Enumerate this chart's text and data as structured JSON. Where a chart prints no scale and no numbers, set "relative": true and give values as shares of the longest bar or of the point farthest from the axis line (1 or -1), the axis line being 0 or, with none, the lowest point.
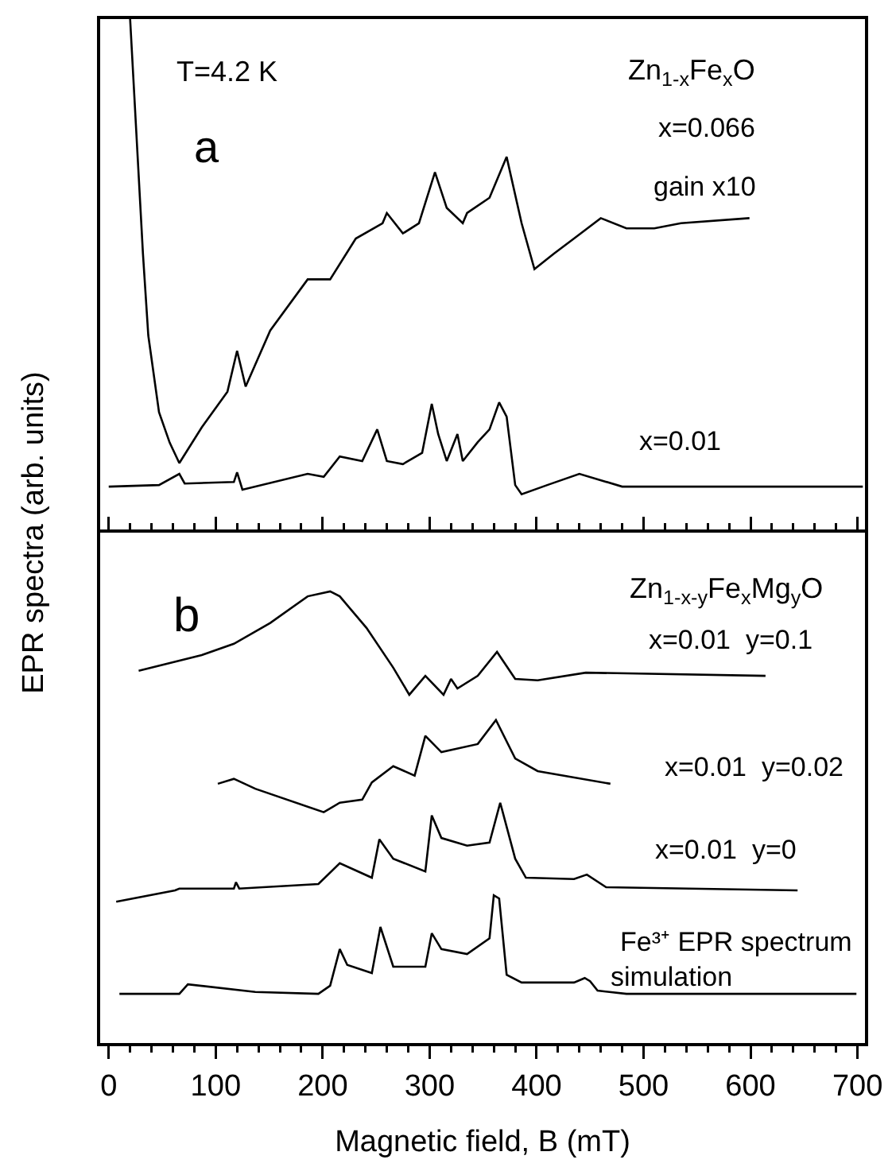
{
  "chart_data": [
    {
      "type": "line",
      "relative": true,
      "ylabel": "EPR spectra (arb. units)",
      "xlim": [
        -8,
        707
      ],
      "xticks": [
        0,
        100,
        200,
        300,
        400,
        500,
        600,
        700
      ],
      "tick_labels": false,
      "annotations": [
        "T=4.2 K",
        "Zn$_{1-x}$Fe$_{x}$O",
        "a",
        "x=0.066",
        "gain x10",
        "x=0.01"
      ],
      "series": [
        {
          "color": "#000000",
          "x": [
            20,
            32,
            37,
            47,
            57,
            66,
            87,
            111,
            120,
            128,
            151,
            186,
            207,
            231,
            256,
            260,
            275,
            290,
            305,
            316,
            331,
            335,
            356,
            372,
            386,
            398,
            416,
            435,
            460,
            484,
            510,
            535,
            599
          ],
          "values": [
            1.0,
            0.54,
            0.38,
            0.23,
            0.17,
            0.13,
            0.2,
            0.27,
            0.35,
            0.28,
            0.39,
            0.49,
            0.49,
            0.57,
            0.6,
            0.62,
            0.58,
            0.6,
            0.7,
            0.63,
            0.6,
            0.62,
            0.65,
            0.73,
            0.6,
            0.51,
            0.54,
            0.57,
            0.61,
            0.59,
            0.59,
            0.6,
            0.61
          ]
        },
        {
          "color": "#000000",
          "x": [
            0,
            47,
            66,
            71,
            117,
            120,
            125,
            186,
            201,
            216,
            237,
            251,
            260,
            275,
            293,
            302,
            308,
            316,
            326,
            331,
            345,
            356,
            365,
            372,
            380,
            386,
            410,
            440,
            480,
            705
          ],
          "values": [
            0.084,
            0.087,
            0.109,
            0.09,
            0.093,
            0.112,
            0.078,
            0.109,
            0.103,
            0.143,
            0.134,
            0.196,
            0.134,
            0.128,
            0.15,
            0.246,
            0.187,
            0.134,
            0.187,
            0.134,
            0.171,
            0.196,
            0.249,
            0.221,
            0.087,
            0.069,
            0.087,
            0.109,
            0.084,
            0.084
          ]
        }
      ]
    },
    {
      "type": "line",
      "relative": true,
      "xlabel": "Magnetic field, B (mT)",
      "xlim": [
        -8,
        707
      ],
      "xticks": [
        0,
        100,
        200,
        300,
        400,
        500,
        600,
        700
      ],
      "tick_labels": "x",
      "annotations": [
        "b",
        "Zn$_{1-x-y}$Fe$_{x}$Mg$_{y}$O",
        "x=0.01  y=0.1",
        "x=0.01  y=0.02",
        "x=0.01  y=0",
        "Fe³⁺ EPR spectrum",
        "simulation"
      ],
      "series": [
        {
          "color": "#000000",
          "x": [
            28,
            87,
            117,
            151,
            186,
            207,
            216,
            241,
            266,
            281,
            296,
            313,
            320,
            326,
            345,
            363,
            380,
            401,
            446,
            614
          ],
          "values": [
            0.824,
            0.859,
            0.884,
            0.93,
            0.989,
            1.0,
            0.989,
            0.919,
            0.831,
            0.771,
            0.813,
            0.771,
            0.806,
            0.785,
            0.813,
            0.866,
            0.806,
            0.803,
            0.82,
            0.813
          ]
        },
        {
          "color": "#000000",
          "x": [
            102,
            117,
            137,
            201,
            216,
            237,
            246,
            266,
            286,
            296,
            311,
            345,
            362,
            380,
            401,
            469
          ],
          "values": [
            0.574,
            0.585,
            0.563,
            0.511,
            0.532,
            0.539,
            0.577,
            0.613,
            0.592,
            0.68,
            0.644,
            0.662,
            0.715,
            0.63,
            0.602,
            0.574
          ]
        },
        {
          "color": "#000000",
          "x": [
            7,
            62,
            66,
            117,
            119,
            122,
            196,
            216,
            246,
            253,
            266,
            296,
            302,
            311,
            335,
            356,
            366,
            380,
            390,
            435,
            447,
            465,
            644
          ],
          "values": [
            0.313,
            0.338,
            0.342,
            0.342,
            0.356,
            0.342,
            0.352,
            0.398,
            0.366,
            0.451,
            0.408,
            0.38,
            0.504,
            0.454,
            0.437,
            0.444,
            0.532,
            0.408,
            0.366,
            0.363,
            0.373,
            0.345,
            0.338
          ]
        },
        {
          "color": "#000000",
          "x": [
            10,
            66,
            74,
            137,
            196,
            207,
            216,
            223,
            246,
            254,
            266,
            296,
            302,
            311,
            335,
            356,
            360,
            365,
            372,
            386,
            435,
            445,
            450,
            457,
            484,
            699
          ],
          "values": [
            0.109,
            0.109,
            0.13,
            0.113,
            0.109,
            0.127,
            0.208,
            0.173,
            0.155,
            0.257,
            0.169,
            0.169,
            0.243,
            0.208,
            0.197,
            0.232,
            0.327,
            0.32,
            0.151,
            0.134,
            0.134,
            0.144,
            0.137,
            0.116,
            0.109,
            0.109
          ]
        }
      ]
    }
  ]
}
